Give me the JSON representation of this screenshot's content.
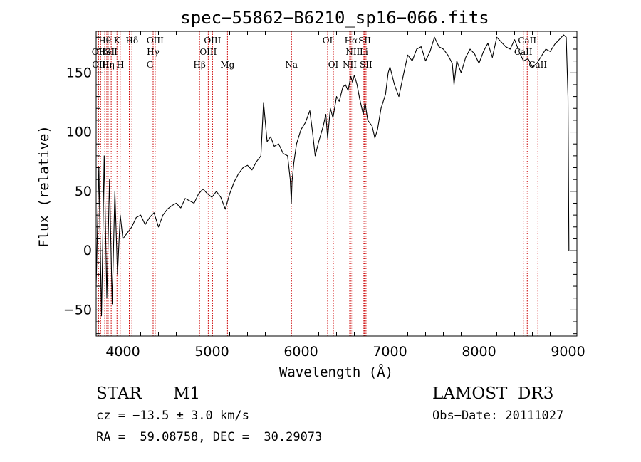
{
  "chart_data": {
    "type": "line",
    "title": "spec−55862−B6210_sp16−066.fits",
    "xlabel": "Wavelength (Å)",
    "ylabel": "Flux (relative)",
    "xlim": [
      3700,
      9100
    ],
    "ylim": [
      -72,
      185
    ],
    "xticks": [
      4000,
      5000,
      6000,
      7000,
      8000,
      9000
    ],
    "yticks": [
      -50,
      0,
      50,
      100,
      150
    ],
    "xtick_labels": [
      "4000",
      "5000",
      "6000",
      "7000",
      "8000",
      "9000"
    ],
    "ytick_labels": [
      "−50",
      "0",
      "50",
      "100",
      "150"
    ],
    "grid": false,
    "line_color": "#000000",
    "marker_color": "#cc0000",
    "series": [
      {
        "x": [
          3700,
          3730,
          3760,
          3790,
          3820,
          3850,
          3880,
          3910,
          3940,
          3970,
          4000,
          4050,
          4100,
          4150,
          4200,
          4250,
          4300,
          4350,
          4400,
          4450,
          4500,
          4550,
          4600,
          4650,
          4700,
          4750,
          4800,
          4850,
          4900,
          4950,
          5000,
          5050,
          5100,
          5150,
          5200,
          5250,
          5300,
          5350,
          5400,
          5450,
          5500,
          5550,
          5580,
          5620,
          5660,
          5700,
          5750,
          5800,
          5850,
          5880,
          5892,
          5900,
          5920,
          5950,
          6000,
          6050,
          6100,
          6130,
          6160,
          6200,
          6250,
          6280,
          6300,
          6330,
          6360,
          6400,
          6430,
          6470,
          6500,
          6530,
          6560,
          6580,
          6600,
          6630,
          6660,
          6700,
          6720,
          6750,
          6800,
          6830,
          6860,
          6900,
          6950,
          6980,
          7000,
          7050,
          7100,
          7150,
          7200,
          7250,
          7300,
          7350,
          7400,
          7450,
          7500,
          7550,
          7600,
          7650,
          7700,
          7720,
          7750,
          7800,
          7850,
          7900,
          7950,
          8000,
          8050,
          8100,
          8150,
          8200,
          8250,
          8300,
          8350,
          8400,
          8450,
          8500,
          8550,
          8600,
          8650,
          8700,
          8750,
          8800,
          8850,
          8900,
          8950,
          8980,
          9000,
          9010
        ],
        "y": [
          -30,
          70,
          -55,
          80,
          -40,
          60,
          -45,
          50,
          -20,
          30,
          10,
          15,
          20,
          28,
          30,
          22,
          28,
          32,
          20,
          30,
          35,
          38,
          40,
          36,
          44,
          42,
          40,
          48,
          52,
          48,
          45,
          50,
          45,
          35,
          48,
          58,
          65,
          70,
          72,
          68,
          75,
          80,
          125,
          92,
          96,
          88,
          90,
          82,
          80,
          60,
          40,
          58,
          74,
          90,
          102,
          108,
          118,
          100,
          80,
          92,
          105,
          115,
          95,
          120,
          112,
          130,
          126,
          138,
          140,
          135,
          147,
          142,
          148,
          140,
          128,
          115,
          125,
          110,
          105,
          95,
          102,
          120,
          132,
          150,
          155,
          140,
          130,
          148,
          165,
          160,
          170,
          172,
          160,
          168,
          180,
          172,
          170,
          165,
          158,
          140,
          160,
          150,
          163,
          170,
          166,
          158,
          168,
          175,
          163,
          180,
          176,
          172,
          170,
          178,
          168,
          160,
          162,
          155,
          158,
          164,
          170,
          168,
          174,
          178,
          182,
          180,
          130,
          0
        ]
      }
    ],
    "line_markers": [
      {
        "x": 3727,
        "label": "OII"
      },
      {
        "x": 3750,
        "label": "OIII"
      },
      {
        "x": 3797,
        "label": "Hθ"
      },
      {
        "x": 3820,
        "label": "HeI"
      },
      {
        "x": 3835,
        "label": "Hη"
      },
      {
        "x": 3869,
        "label": "SII"
      },
      {
        "x": 3934,
        "label": "K"
      },
      {
        "x": 3970,
        "label": "H"
      },
      {
        "x": 4072,
        "label": "SII"
      },
      {
        "x": 4102,
        "label": "Hδ"
      },
      {
        "x": 4304,
        "label": "G"
      },
      {
        "x": 4340,
        "label": "Hγ"
      },
      {
        "x": 4363,
        "label": "OIII"
      },
      {
        "x": 4861,
        "label": "Hβ"
      },
      {
        "x": 4959,
        "label": "OIII"
      },
      {
        "x": 5007,
        "label": "OIII"
      },
      {
        "x": 5175,
        "label": "Mg"
      },
      {
        "x": 5894,
        "label": "Na"
      },
      {
        "x": 6300,
        "label": "OI"
      },
      {
        "x": 6364,
        "label": "OI"
      },
      {
        "x": 6548,
        "label": "NII"
      },
      {
        "x": 6563,
        "label": "Hα"
      },
      {
        "x": 6583,
        "label": "NII"
      },
      {
        "x": 6707,
        "label": "Li"
      },
      {
        "x": 6716,
        "label": "SII"
      },
      {
        "x": 6731,
        "label": "SII"
      },
      {
        "x": 8498,
        "label": "CaII"
      },
      {
        "x": 8542,
        "label": "CaII"
      },
      {
        "x": 8662,
        "label": "CaII"
      }
    ],
    "marker_labels": [
      {
        "x": 3797,
        "row": 1,
        "text": "Hθ"
      },
      {
        "x": 3934,
        "row": 1,
        "text": "K"
      },
      {
        "x": 4102,
        "row": 1,
        "text": "Hδ"
      },
      {
        "x": 4363,
        "row": 1,
        "text": "OIII"
      },
      {
        "x": 5007,
        "row": 1,
        "text": "OIII"
      },
      {
        "x": 6300,
        "row": 1,
        "text": "OI"
      },
      {
        "x": 6563,
        "row": 1,
        "text": "Hα"
      },
      {
        "x": 6716,
        "row": 1,
        "text": "SII"
      },
      {
        "x": 8542,
        "row": 1,
        "text": "CaII"
      },
      {
        "x": 3727,
        "row": 2,
        "text": "OII"
      },
      {
        "x": 3820,
        "row": 2,
        "text": "HeI"
      },
      {
        "x": 3869,
        "row": 2,
        "text": "SII"
      },
      {
        "x": 4340,
        "row": 2,
        "text": "Hγ"
      },
      {
        "x": 4959,
        "row": 2,
        "text": "OIII"
      },
      {
        "x": 6583,
        "row": 2,
        "text": "NII"
      },
      {
        "x": 6707,
        "row": 2,
        "text": "Li"
      },
      {
        "x": 8498,
        "row": 2,
        "text": "CaII"
      },
      {
        "x": 3750,
        "row": 3,
        "text": "OIII"
      },
      {
        "x": 3835,
        "row": 3,
        "text": "Hη"
      },
      {
        "x": 3970,
        "row": 3,
        "text": "H"
      },
      {
        "x": 4304,
        "row": 3,
        "text": "G"
      },
      {
        "x": 4861,
        "row": 3,
        "text": "Hβ"
      },
      {
        "x": 5175,
        "row": 3,
        "text": "Mg"
      },
      {
        "x": 5894,
        "row": 3,
        "text": "Na"
      },
      {
        "x": 6364,
        "row": 3,
        "text": "OI"
      },
      {
        "x": 6548,
        "row": 3,
        "text": "NII"
      },
      {
        "x": 6731,
        "row": 3,
        "text": "SII"
      },
      {
        "x": 8662,
        "row": 3,
        "text": "CaII"
      }
    ]
  },
  "footer": {
    "object_class": "STAR",
    "subclass": "M1",
    "survey": "LAMOST  DR3",
    "redshift_line": "cz = −13.5 ± 3.0 km/s",
    "obs_date_line": "Obs−Date: 20111027",
    "coords_line": "RA =  59.08758, DEC =  30.29073"
  }
}
